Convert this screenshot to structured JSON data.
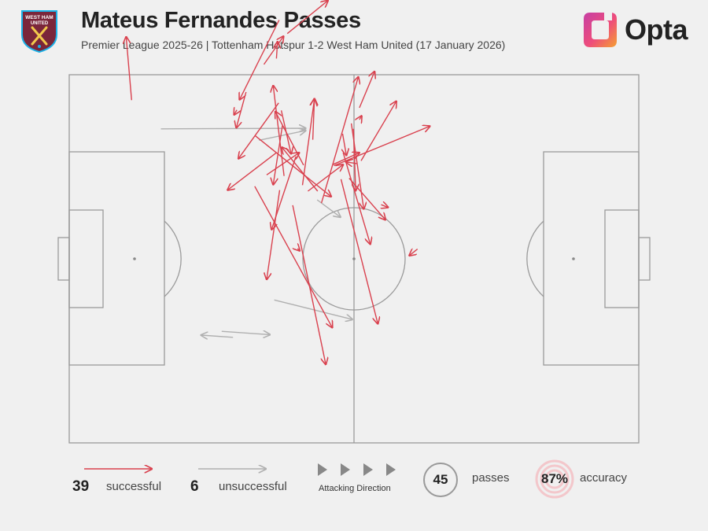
{
  "header": {
    "title": "Mateus Fernandes Passes",
    "subtitle": "Premier League 2025-26 | Tottenham Hotspur 1-2 West Ham United (17 January 2026)",
    "crest_text": "WEST HAM UNITED",
    "brand": "Opta"
  },
  "legend": {
    "successful_count": "39",
    "successful_label": "successful",
    "unsuccessful_count": "6",
    "unsuccessful_label": "unsuccessful",
    "direction_label": "Attacking Direction",
    "passes_count": "45",
    "passes_label": "passes",
    "accuracy_value": "87%",
    "accuracy_label": "accuracy"
  },
  "colors": {
    "successful": "#d9414e",
    "unsuccessful": "#b0b0b0",
    "pitch_line": "#9a9a9a",
    "claret": "#7a263a",
    "sky_blue": "#1bb1e7"
  },
  "chart_data": {
    "type": "scatter",
    "title": "Mateus Fernandes Passes",
    "pitch_length_m": 105,
    "pitch_width_m": 68,
    "attacking_direction": "left-to-right",
    "successful": 39,
    "unsuccessful": 6,
    "total": 45,
    "accuracy_pct": 87,
    "passes": [
      {
        "x1": 11.5,
        "y1": 63.3,
        "x2": 10.5,
        "y2": 75.0,
        "successful": true
      },
      {
        "x1": 40.2,
        "y1": 75.6,
        "x2": 47.7,
        "y2": 81.7,
        "successful": true
      },
      {
        "x1": 38.6,
        "y1": 62.8,
        "x2": 31.2,
        "y2": 52.5,
        "successful": true
      },
      {
        "x1": 32.6,
        "y1": 64.8,
        "x2": 30.8,
        "y2": 58.2,
        "successful": true
      },
      {
        "x1": 30.9,
        "y1": 61.5,
        "x2": 30.4,
        "y2": 60.6,
        "successful": true
      },
      {
        "x1": 35.9,
        "y1": 69.9,
        "x2": 39.5,
        "y2": 75.1,
        "successful": true
      },
      {
        "x1": 38.7,
        "y1": 78.1,
        "x2": 31.4,
        "y2": 63.4,
        "successful": true
      },
      {
        "x1": 38.2,
        "y1": 71.0,
        "x2": 38.4,
        "y2": 74.1,
        "successful": true
      },
      {
        "x1": 39.3,
        "y1": 58.6,
        "x2": 37.6,
        "y2": 47.7,
        "successful": true
      },
      {
        "x1": 38.8,
        "y1": 46.7,
        "x2": 36.4,
        "y2": 30.2,
        "successful": true
      },
      {
        "x1": 34.2,
        "y1": 47.4,
        "x2": 48.5,
        "y2": 21.3,
        "successful": true
      },
      {
        "x1": 53.5,
        "y1": 59.7,
        "x2": 53.9,
        "y2": 60.4,
        "successful": true
      },
      {
        "x1": 46.5,
        "y1": 44.3,
        "x2": 53.3,
        "y2": 67.6,
        "successful": true
      },
      {
        "x1": 44.9,
        "y1": 56.0,
        "x2": 45.2,
        "y2": 63.6,
        "successful": true
      },
      {
        "x1": 43.0,
        "y1": 47.6,
        "x2": 45.2,
        "y2": 63.5,
        "successful": true
      },
      {
        "x1": 43.2,
        "y1": 51.3,
        "x2": 38.0,
        "y2": 61.2,
        "successful": true
      },
      {
        "x1": 39.6,
        "y1": 49.3,
        "x2": 37.6,
        "y2": 66.0,
        "successful": true
      },
      {
        "x1": 42.1,
        "y1": 35.9,
        "x2": 42.5,
        "y2": 35.5,
        "successful": true
      },
      {
        "x1": 36.4,
        "y1": 49.5,
        "x2": 42.4,
        "y2": 53.6,
        "successful": true
      },
      {
        "x1": 41.2,
        "y1": 43.9,
        "x2": 47.3,
        "y2": 14.5,
        "successful": true
      },
      {
        "x1": 45.8,
        "y1": 46.5,
        "x2": 39.2,
        "y2": 54.6,
        "successful": true
      },
      {
        "x1": 39.1,
        "y1": 61.4,
        "x2": 40.9,
        "y2": 53.4,
        "successful": true
      },
      {
        "x1": 41.8,
        "y1": 52.9,
        "x2": 37.3,
        "y2": 39.4,
        "successful": true
      },
      {
        "x1": 38.2,
        "y1": 53.6,
        "x2": 29.2,
        "y2": 46.7,
        "successful": true
      },
      {
        "x1": 34.2,
        "y1": 56.8,
        "x2": 48.3,
        "y2": 45.5,
        "successful": true
      },
      {
        "x1": 44.0,
        "y1": 46.5,
        "x2": 50.5,
        "y2": 51.4,
        "successful": true
      },
      {
        "x1": 53.5,
        "y1": 61.9,
        "x2": 56.3,
        "y2": 68.6,
        "successful": true
      },
      {
        "x1": 57.5,
        "y1": 44.0,
        "x2": 58.8,
        "y2": 43.5,
        "successful": true
      },
      {
        "x1": 64.2,
        "y1": 35.8,
        "x2": 62.7,
        "y2": 34.6,
        "successful": true
      },
      {
        "x1": 48.8,
        "y1": 51.2,
        "x2": 66.5,
        "y2": 58.5,
        "successful": true
      },
      {
        "x1": 50.5,
        "y1": 53.6,
        "x2": 55.5,
        "y2": 36.7,
        "successful": true
      },
      {
        "x1": 52.4,
        "y1": 58.0,
        "x2": 52.8,
        "y2": 46.6,
        "successful": true
      },
      {
        "x1": 52.0,
        "y1": 59.0,
        "x2": 54.3,
        "y2": 43.2,
        "successful": true
      },
      {
        "x1": 48.6,
        "y1": 51.4,
        "x2": 53.5,
        "y2": 53.6,
        "successful": true
      },
      {
        "x1": 50.4,
        "y1": 57.1,
        "x2": 51.1,
        "y2": 53.1,
        "successful": true
      },
      {
        "x1": 53.0,
        "y1": 51.6,
        "x2": 51.0,
        "y2": 51.9,
        "successful": true
      },
      {
        "x1": 53.8,
        "y1": 52.1,
        "x2": 60.3,
        "y2": 63.1,
        "successful": true
      },
      {
        "x1": 50.1,
        "y1": 48.7,
        "x2": 56.9,
        "y2": 22.0,
        "successful": true
      },
      {
        "x1": 51.6,
        "y1": 48.9,
        "x2": 58.3,
        "y2": 41.2,
        "successful": true
      },
      {
        "x1": 16.9,
        "y1": 58.0,
        "x2": 43.6,
        "y2": 58.1,
        "successful": false
      },
      {
        "x1": 35.0,
        "y1": 55.9,
        "x2": 43.6,
        "y2": 57.7,
        "successful": false
      },
      {
        "x1": 37.8,
        "y1": 26.4,
        "x2": 52.2,
        "y2": 22.8,
        "successful": false
      },
      {
        "x1": 28.1,
        "y1": 20.6,
        "x2": 37.0,
        "y2": 20.0,
        "successful": false
      },
      {
        "x1": 30.2,
        "y1": 19.5,
        "x2": 24.3,
        "y2": 19.9,
        "successful": false
      },
      {
        "x1": 45.7,
        "y1": 44.9,
        "x2": 50.0,
        "y2": 41.7,
        "successful": false
      }
    ]
  }
}
